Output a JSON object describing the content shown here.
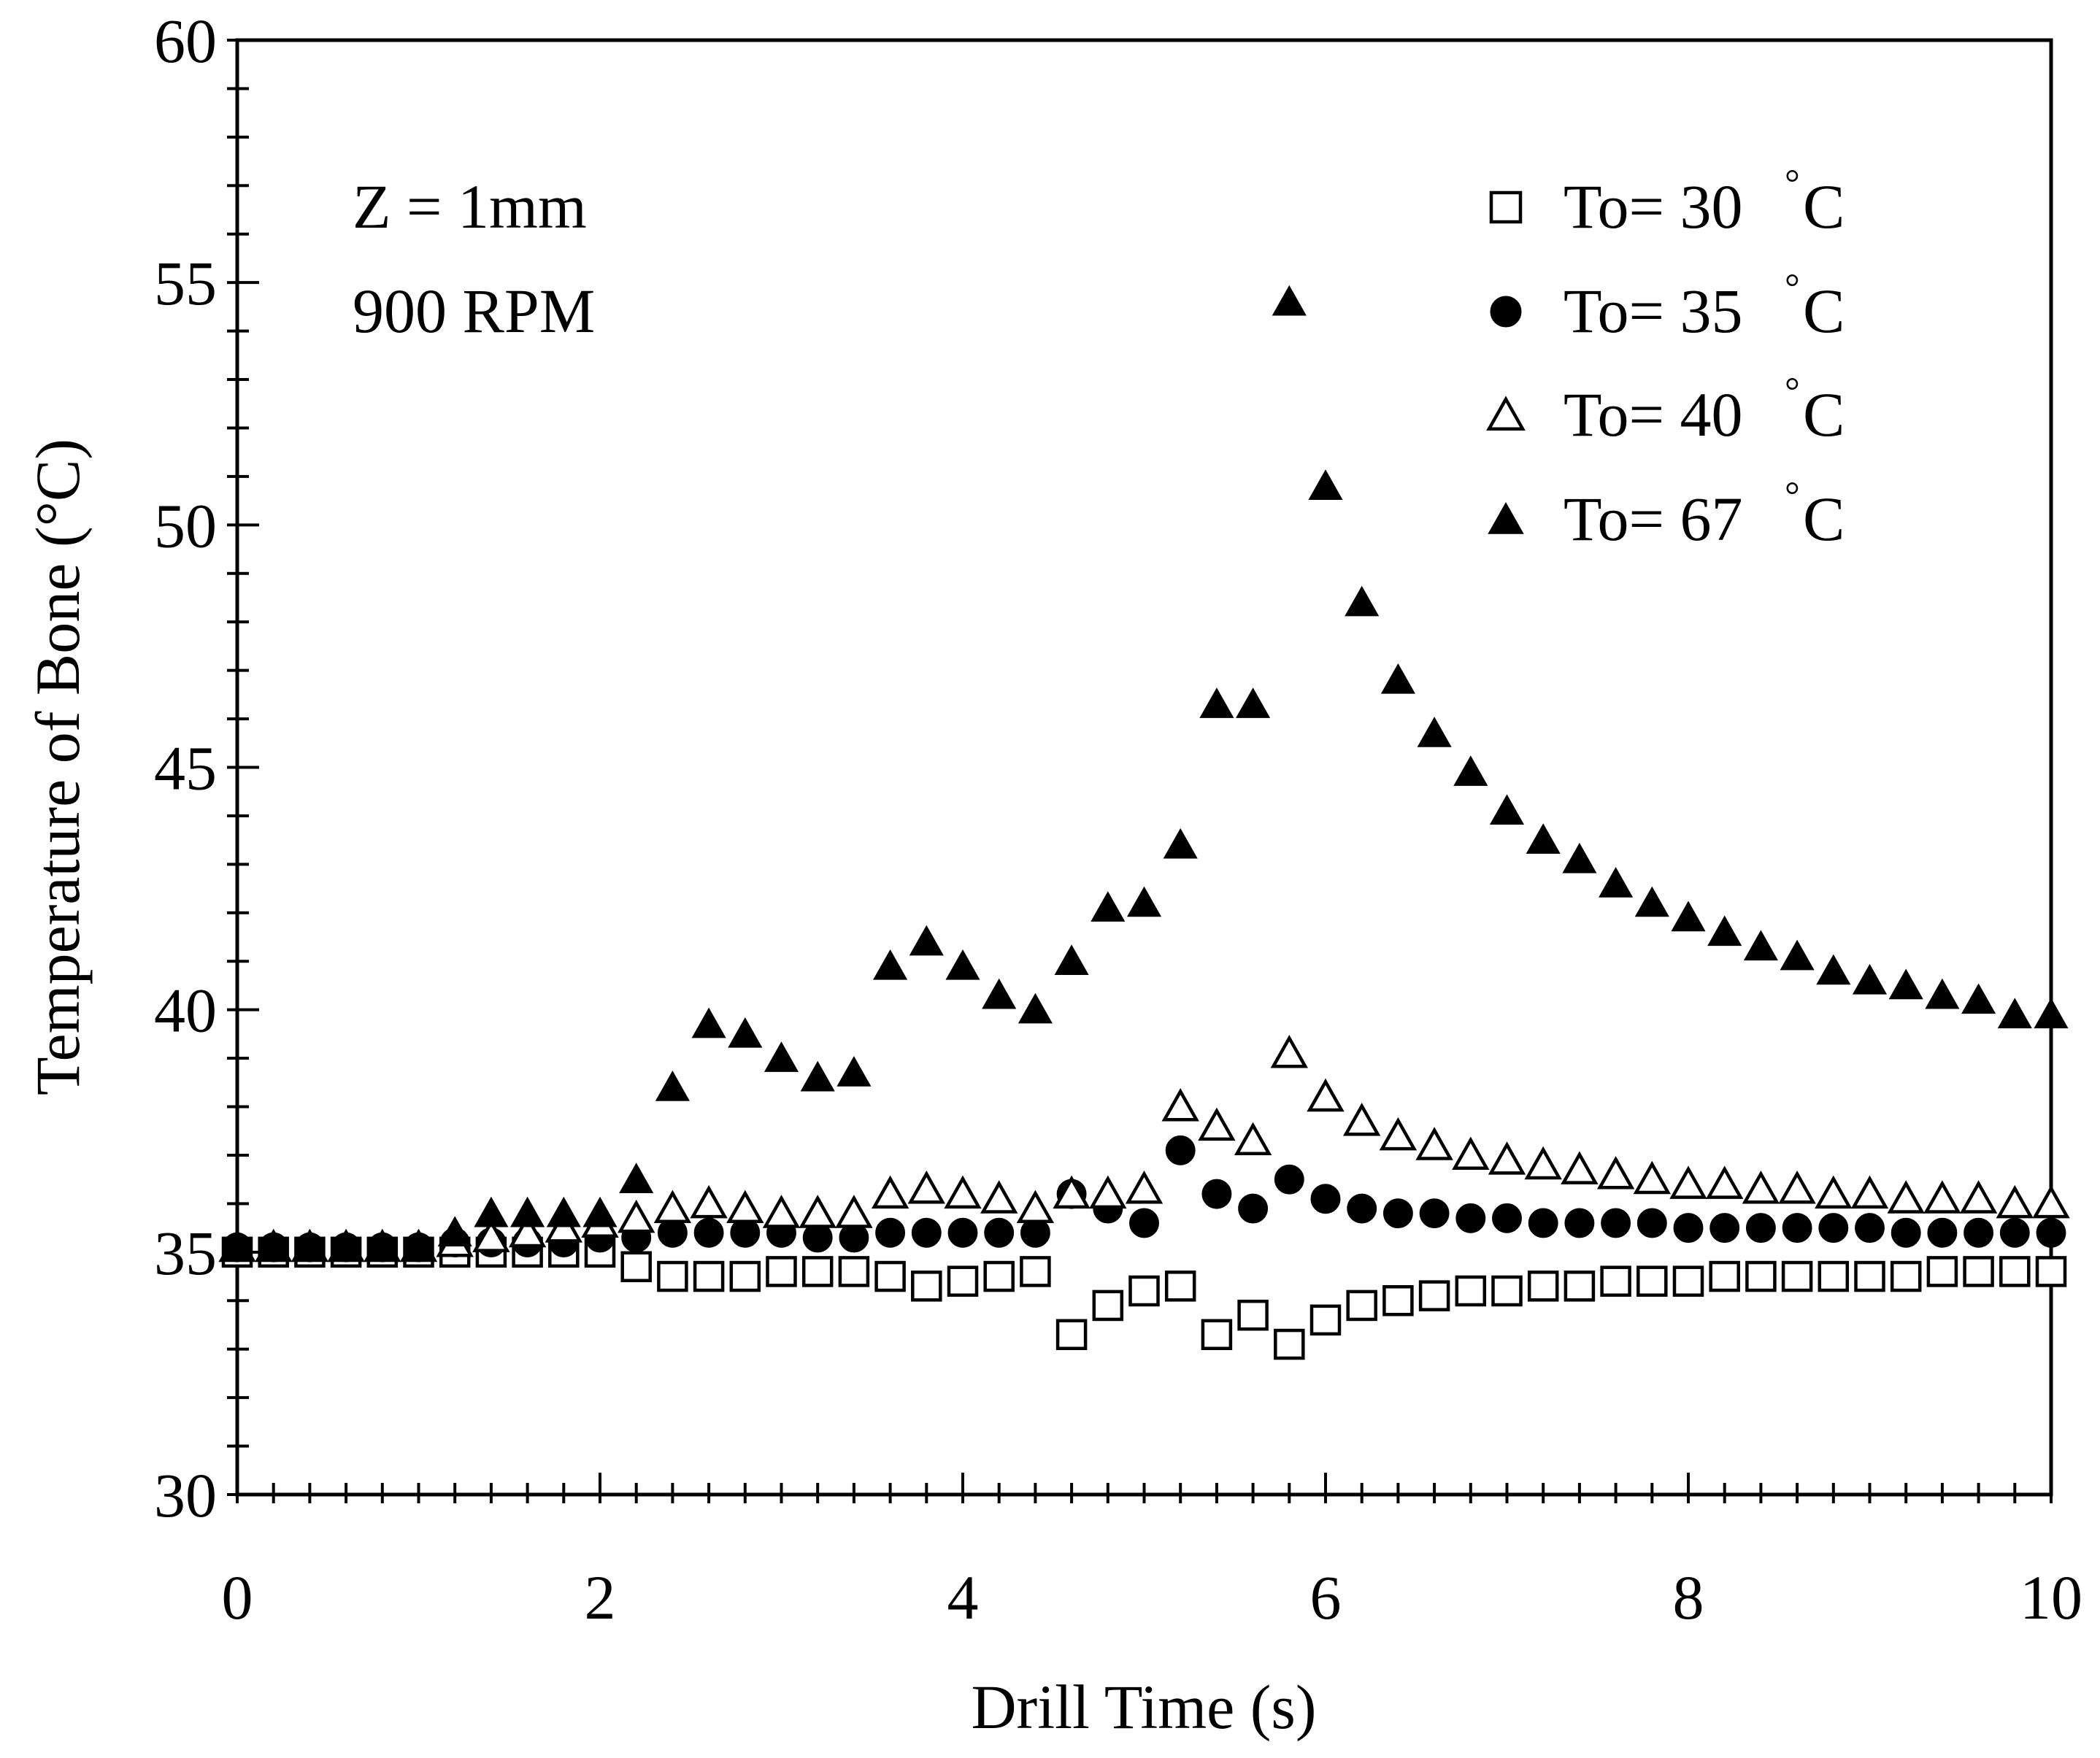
{
  "chart_data": {
    "type": "scatter",
    "title": "",
    "xlabel": "Drill Time (s)",
    "ylabel": "Temperature of Bone (°C)",
    "xlim": [
      0,
      10
    ],
    "ylim": [
      30,
      60
    ],
    "xticks": [
      0,
      2,
      4,
      6,
      8,
      10
    ],
    "yticks": [
      30,
      35,
      40,
      45,
      50,
      55,
      60
    ],
    "grid": false,
    "legend_position": "top-right",
    "annotations": [
      "Z = 1mm",
      "900 RPM"
    ],
    "x": [
      0,
      0.2,
      0.4,
      0.6,
      0.8,
      1.0,
      1.2,
      1.4,
      1.6,
      1.8,
      2.0,
      2.2,
      2.4,
      2.6,
      2.8,
      3.0,
      3.2,
      3.4,
      3.6,
      3.8,
      4.0,
      4.2,
      4.4,
      4.6,
      4.8,
      5.0,
      5.2,
      5.4,
      5.6,
      5.8,
      6.0,
      6.2,
      6.4,
      6.6,
      6.8,
      7.0,
      7.2,
      7.4,
      7.6,
      7.8,
      8.0,
      8.2,
      8.4,
      8.6,
      8.8,
      9.0,
      9.2,
      9.4,
      9.6,
      9.8,
      10.0
    ],
    "series": [
      {
        "name": "To= 30 °C",
        "legend_text": "To= 30",
        "legend_unit": "°C",
        "marker": "open-square",
        "values": [
          35.0,
          35.0,
          35.0,
          35.0,
          35.0,
          35.0,
          35.0,
          35.0,
          35.0,
          35.0,
          35.0,
          34.7,
          34.5,
          34.5,
          34.5,
          34.6,
          34.6,
          34.6,
          34.5,
          34.3,
          34.4,
          34.5,
          34.6,
          33.3,
          33.9,
          34.2,
          34.3,
          33.3,
          33.7,
          33.1,
          33.6,
          33.9,
          34.0,
          34.1,
          34.2,
          34.2,
          34.3,
          34.3,
          34.4,
          34.4,
          34.4,
          34.5,
          34.5,
          34.5,
          34.5,
          34.5,
          34.5,
          34.6,
          34.6,
          34.6,
          34.6
        ]
      },
      {
        "name": "To= 35 °C",
        "legend_text": "To= 35",
        "legend_unit": "°C",
        "marker": "filled-circle",
        "values": [
          35.1,
          35.1,
          35.1,
          35.1,
          35.1,
          35.1,
          35.2,
          35.2,
          35.2,
          35.2,
          35.3,
          35.3,
          35.4,
          35.4,
          35.4,
          35.4,
          35.3,
          35.3,
          35.4,
          35.4,
          35.4,
          35.4,
          35.4,
          36.2,
          35.9,
          35.6,
          37.1,
          36.2,
          35.9,
          36.5,
          36.1,
          35.9,
          35.8,
          35.8,
          35.7,
          35.7,
          35.6,
          35.6,
          35.6,
          35.6,
          35.5,
          35.5,
          35.5,
          35.5,
          35.5,
          35.5,
          35.4,
          35.4,
          35.4,
          35.4,
          35.4
        ]
      },
      {
        "name": "To= 40 °C",
        "legend_text": "To= 40",
        "legend_unit": "°C",
        "marker": "open-triangle",
        "values": [
          35.1,
          35.1,
          35.1,
          35.1,
          35.1,
          35.1,
          35.2,
          35.3,
          35.4,
          35.5,
          35.6,
          35.7,
          35.9,
          36.0,
          35.9,
          35.8,
          35.8,
          35.8,
          36.2,
          36.3,
          36.2,
          36.1,
          35.9,
          36.2,
          36.2,
          36.3,
          38.0,
          37.6,
          37.3,
          39.1,
          38.2,
          37.7,
          37.4,
          37.2,
          37.0,
          36.9,
          36.8,
          36.7,
          36.6,
          36.5,
          36.4,
          36.4,
          36.3,
          36.3,
          36.2,
          36.2,
          36.1,
          36.1,
          36.1,
          36.0,
          36.0
        ]
      },
      {
        "name": "To= 67 °C",
        "legend_text": "To= 67",
        "legend_unit": "°C",
        "marker": "filled-triangle",
        "values": [
          35.1,
          35.1,
          35.1,
          35.1,
          35.1,
          35.1,
          35.4,
          35.8,
          35.8,
          35.8,
          35.8,
          36.5,
          38.4,
          39.7,
          39.5,
          39.0,
          38.6,
          38.7,
          40.9,
          41.4,
          40.9,
          40.3,
          40.0,
          41.0,
          42.1,
          42.2,
          43.4,
          46.3,
          46.3,
          54.6,
          50.8,
          48.4,
          46.8,
          45.7,
          44.9,
          44.1,
          43.5,
          43.1,
          42.6,
          42.2,
          41.9,
          41.6,
          41.3,
          41.1,
          40.8,
          40.6,
          40.5,
          40.3,
          40.2,
          39.9,
          39.9
        ]
      }
    ]
  }
}
